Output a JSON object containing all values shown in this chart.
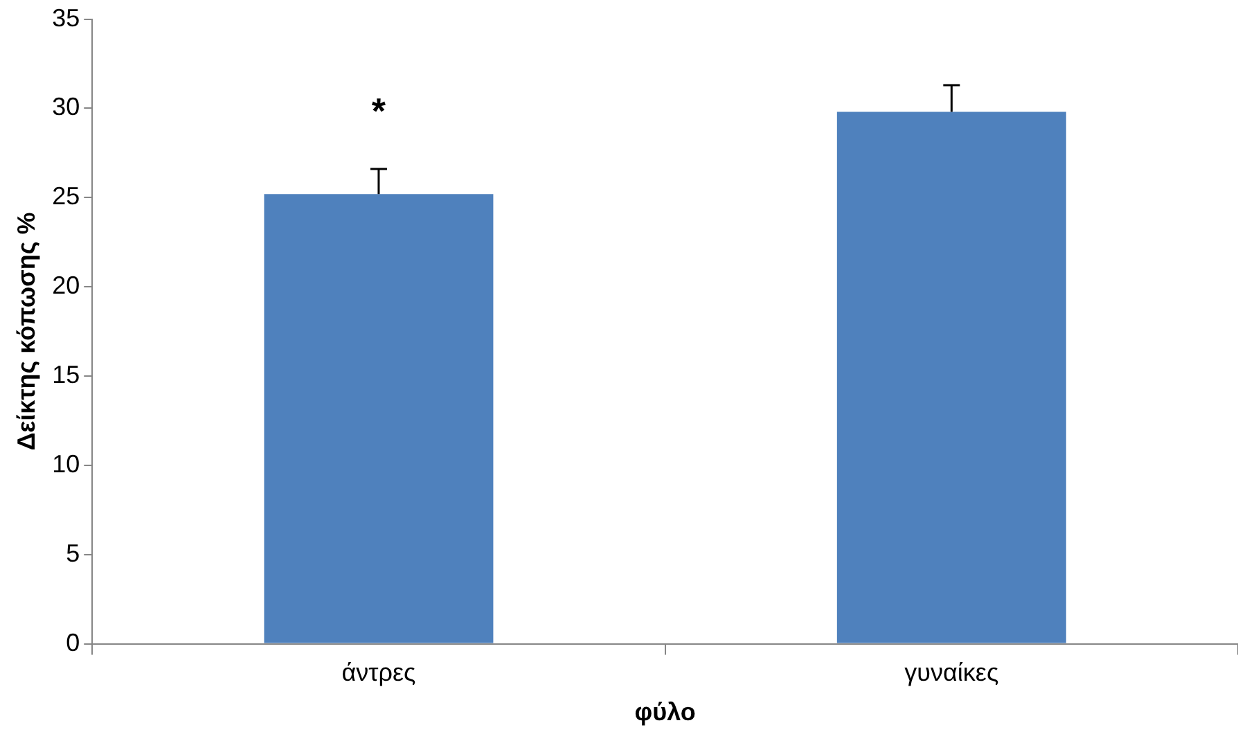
{
  "chart_data": {
    "type": "bar",
    "xlabel": "φύλο",
    "ylabel": "Δείκτης κόπωσης %",
    "categories": [
      "άντρες",
      "γυναίκες"
    ],
    "values": [
      25.2,
      29.8
    ],
    "color": "#4f81bd",
    "errors": [
      [
        25.2,
        26.6
      ],
      [
        29.8,
        31.3
      ]
    ],
    "ylim": [
      0,
      35
    ],
    "yticks": [
      0,
      5,
      10,
      15,
      20,
      25,
      30,
      35
    ],
    "grid": false,
    "legend": false,
    "annotations": [
      "*"
    ]
  }
}
